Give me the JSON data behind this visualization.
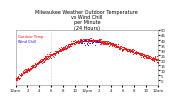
{
  "title": "Milwaukee Weather Outdoor Temperature\nvs Wind Chill\nper Minute\n(24 Hours)",
  "legend_temp": "Outdoor Temp",
  "legend_wind": "Wind Chill",
  "dot_color_temp": "#ff0000",
  "dot_color_wind": "#0000ff",
  "background_color": "#ffffff",
  "title_color": "#000000",
  "ylim_min": -5,
  "ylim_max": 50,
  "xlim_min": 0,
  "xlim_max": 1440,
  "vline_x": 360,
  "title_fontsize": 3.5,
  "tick_fontsize": 2.8,
  "legend_fontsize": 2.5,
  "dot_size": 0.4,
  "yticks": [
    0,
    5,
    10,
    15,
    20,
    25,
    30,
    35,
    40,
    45,
    50
  ],
  "xtick_positions": [
    0,
    60,
    120,
    180,
    240,
    300,
    360,
    420,
    480,
    540,
    600,
    660,
    720,
    780,
    840,
    900,
    960,
    1020,
    1080,
    1140,
    1200,
    1260,
    1320,
    1380,
    1440
  ],
  "xtick_labels": [
    "12am",
    "1",
    "2",
    "3",
    "4",
    "5",
    "6",
    "7",
    "8",
    "9",
    "10",
    "11",
    "12pm",
    "1",
    "2",
    "3",
    "4",
    "5",
    "6",
    "7",
    "8",
    "9",
    "10",
    "11",
    "12am"
  ]
}
